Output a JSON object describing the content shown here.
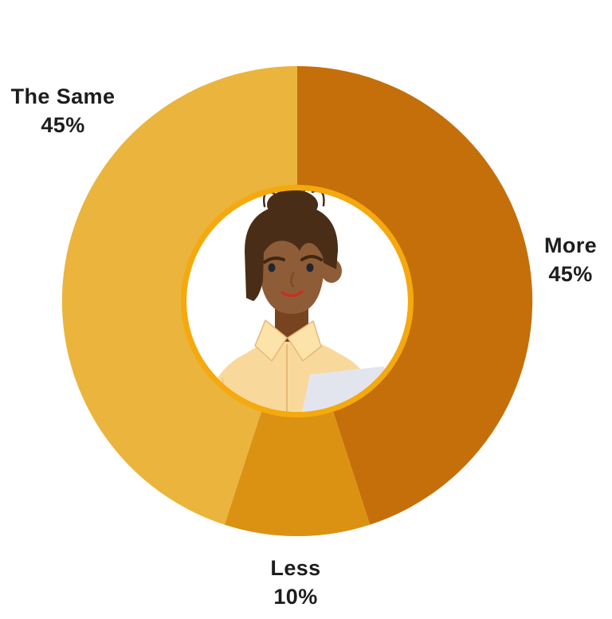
{
  "page": {
    "background_color": "#FFFFFF"
  },
  "chart_data": {
    "type": "pie",
    "subtype": "donut",
    "title": "",
    "categories": [
      "More",
      "Less",
      "The Same"
    ],
    "values": [
      45,
      10,
      45
    ],
    "unit": "%",
    "slice_colors": [
      "#C56F0B",
      "#DB9213",
      "#EAB43D"
    ],
    "ring_color": "#F5A90D",
    "hole_color": "#FFFFFF",
    "start_angle": "12-oclock",
    "direction": "clockwise",
    "legend_position": "none",
    "center_image": "illustration of woman with hair bun in light yellow shirt at laptop",
    "labels": [
      {
        "text": "The Same",
        "value": "45%",
        "position": "upper-left"
      },
      {
        "text": "More",
        "value": "45%",
        "position": "right"
      },
      {
        "text": "Less",
        "value": "10%",
        "position": "bottom"
      }
    ]
  },
  "label_text_color": "#1D1D1D"
}
